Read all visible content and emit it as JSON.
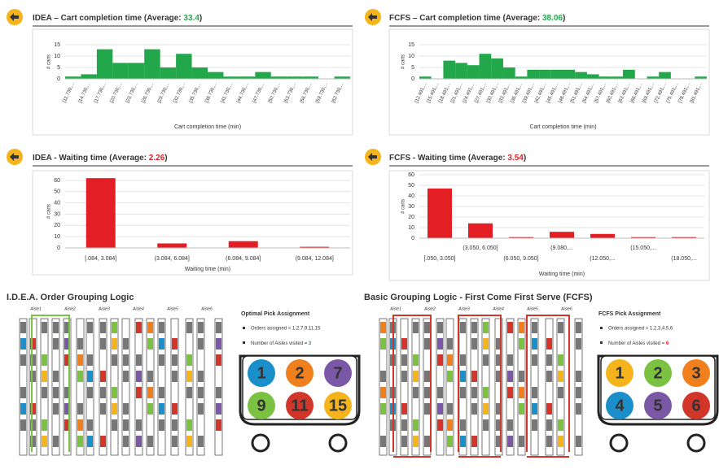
{
  "chart_data": [
    {
      "type": "bar",
      "title": "IDEA – Cart completion time (Average: ",
      "average": "33.4",
      "title_close": ")",
      "average_color": "#22a84a",
      "y_label": "# carts",
      "x_label": "Cart completion time (min)",
      "color": "#22a84a",
      "grid": true,
      "categories": [
        "[11.730,...",
        "[14.730,...",
        "[17.730,...",
        "[20.730,...",
        "[23.730,...",
        "[26.730,...",
        "[29.730,...",
        "[32.730,...",
        "[35.730,...",
        "[38.730,...",
        "[41.730,...",
        "[44.730,...",
        "[47.730,...",
        "[50.730,...",
        "[53.730,...",
        "[56.730,...",
        "[59.730,...",
        "[62.730,..."
      ],
      "values": [
        1,
        2,
        13,
        7,
        7,
        13,
        5,
        11,
        5,
        3,
        1,
        1,
        3,
        1,
        1,
        1,
        0,
        1
      ],
      "ylim": [
        0,
        15
      ],
      "yticks": [
        0,
        5,
        10,
        15
      ]
    },
    {
      "type": "bar",
      "title": "FCFS – Cart completion time (Average: ",
      "average": "38.06",
      "title_close": ")",
      "average_color": "#22a84a",
      "y_label": "# carts",
      "x_label": "Cart completion time (min)",
      "color": "#22a84a",
      "grid": true,
      "categories": [
        "[12.491,...",
        "[15.491,...",
        "[18.491,...",
        "[21.491,...",
        "[24.491,...",
        "[27.491,...",
        "[30.491,...",
        "[33.491,...",
        "[36.491,...",
        "[39.491,...",
        "[42.491,...",
        "[45.491,...",
        "[48.491,...",
        "[51.491,...",
        "[54.491,...",
        "[57.491,...",
        "[60.491,...",
        "[63.491,...",
        "[66.491,...",
        "[69.491,...",
        "[72.491,...",
        "[75.491,...",
        "[78.491,...",
        "[81.491,..."
      ],
      "values": [
        1,
        0,
        8,
        7,
        6,
        11,
        9,
        5,
        1,
        4,
        4,
        4,
        4,
        3,
        2,
        1,
        1,
        4,
        0,
        1,
        3,
        0,
        0,
        1
      ],
      "ylim": [
        0,
        15
      ],
      "yticks": [
        0,
        5,
        10,
        15
      ]
    },
    {
      "type": "bar",
      "title": "IDEA - Waiting time (Average: ",
      "average": "2.26",
      "title_close": ")",
      "average_color": "#e31e24",
      "y_label": "# carts",
      "x_label": "Waiting time (min)",
      "color": "#e31e24",
      "grid": true,
      "categories": [
        "[.084, 3.084]",
        "(3.084, 6.084]",
        "(6.084, 9.084]",
        "(9.084, 12.084]"
      ],
      "values": [
        62,
        4,
        6,
        1
      ],
      "ylim": [
        0,
        65
      ],
      "yticks": [
        0,
        10,
        20,
        30,
        40,
        50,
        60
      ]
    },
    {
      "type": "bar",
      "title": "FCFS - Waiting time (Average: ",
      "average": "3.54",
      "title_close": ")",
      "average_color": "#e31e24",
      "y_label": "# carts",
      "x_label": "Waiting time (min)",
      "color": "#e31e24",
      "grid": true,
      "categories": [
        "[.050, 3.050]",
        "(3.050, 6.050]",
        "(6.050, 9.050]",
        "(9.080,...",
        "(12.050,...",
        "(15.050,...",
        "(18.050,..."
      ],
      "values": [
        47,
        14,
        1,
        6,
        4,
        1,
        1
      ],
      "ylim": [
        0,
        60
      ],
      "yticks": [
        0,
        10,
        20,
        30,
        40,
        50,
        60
      ]
    }
  ],
  "diagrams": [
    {
      "title": "I.D.E.A. Order Grouping Logic",
      "aisles": [
        "Aisle1",
        "Aisle2",
        "Aisle3",
        "Aisle4",
        "Aisle5",
        "Aisle6"
      ],
      "assignment_title": "Optimal Pick Assignment",
      "orders_text": "Orders  assigned = 1,2,7,9,11,15",
      "aisles_text": "Number of Aisles visited = ",
      "aisles_visited": 3,
      "aisles_visited_color": "#22a84a",
      "bracket_color": "#7cc242",
      "cart": [
        {
          "label": 1,
          "color": "#1b8fc9"
        },
        {
          "label": 2,
          "color": "#f07f1e"
        },
        {
          "label": 7,
          "color": "#7b58a6"
        },
        {
          "label": 9,
          "color": "#7cc242"
        },
        {
          "label": 11,
          "color": "#d2352a"
        },
        {
          "label": 15,
          "color": "#f5b41c"
        }
      ]
    },
    {
      "title": "Basic Grouping Logic - First Come First Serve (FCFS)",
      "aisles": [
        "Aisle1",
        "Aisle2",
        "Aisle3",
        "Aisle4",
        "Aisle5",
        "Aisle6"
      ],
      "assignment_title": "FCFS Pick Assignment",
      "orders_text": "Orders  assigned = 1,2,3,4,5,6",
      "aisles_text": "Number of Aisles visited = ",
      "aisles_visited": 6,
      "aisles_visited_color": "#e31e24",
      "bracket_color": "#d2352a",
      "cart": [
        {
          "label": 1,
          "color": "#f5b41c"
        },
        {
          "label": 2,
          "color": "#7cc242"
        },
        {
          "label": 3,
          "color": "#f07f1e"
        },
        {
          "label": 4,
          "color": "#1b8fc9"
        },
        {
          "label": 5,
          "color": "#7b58a6"
        },
        {
          "label": 6,
          "color": "#d2352a"
        }
      ]
    }
  ]
}
